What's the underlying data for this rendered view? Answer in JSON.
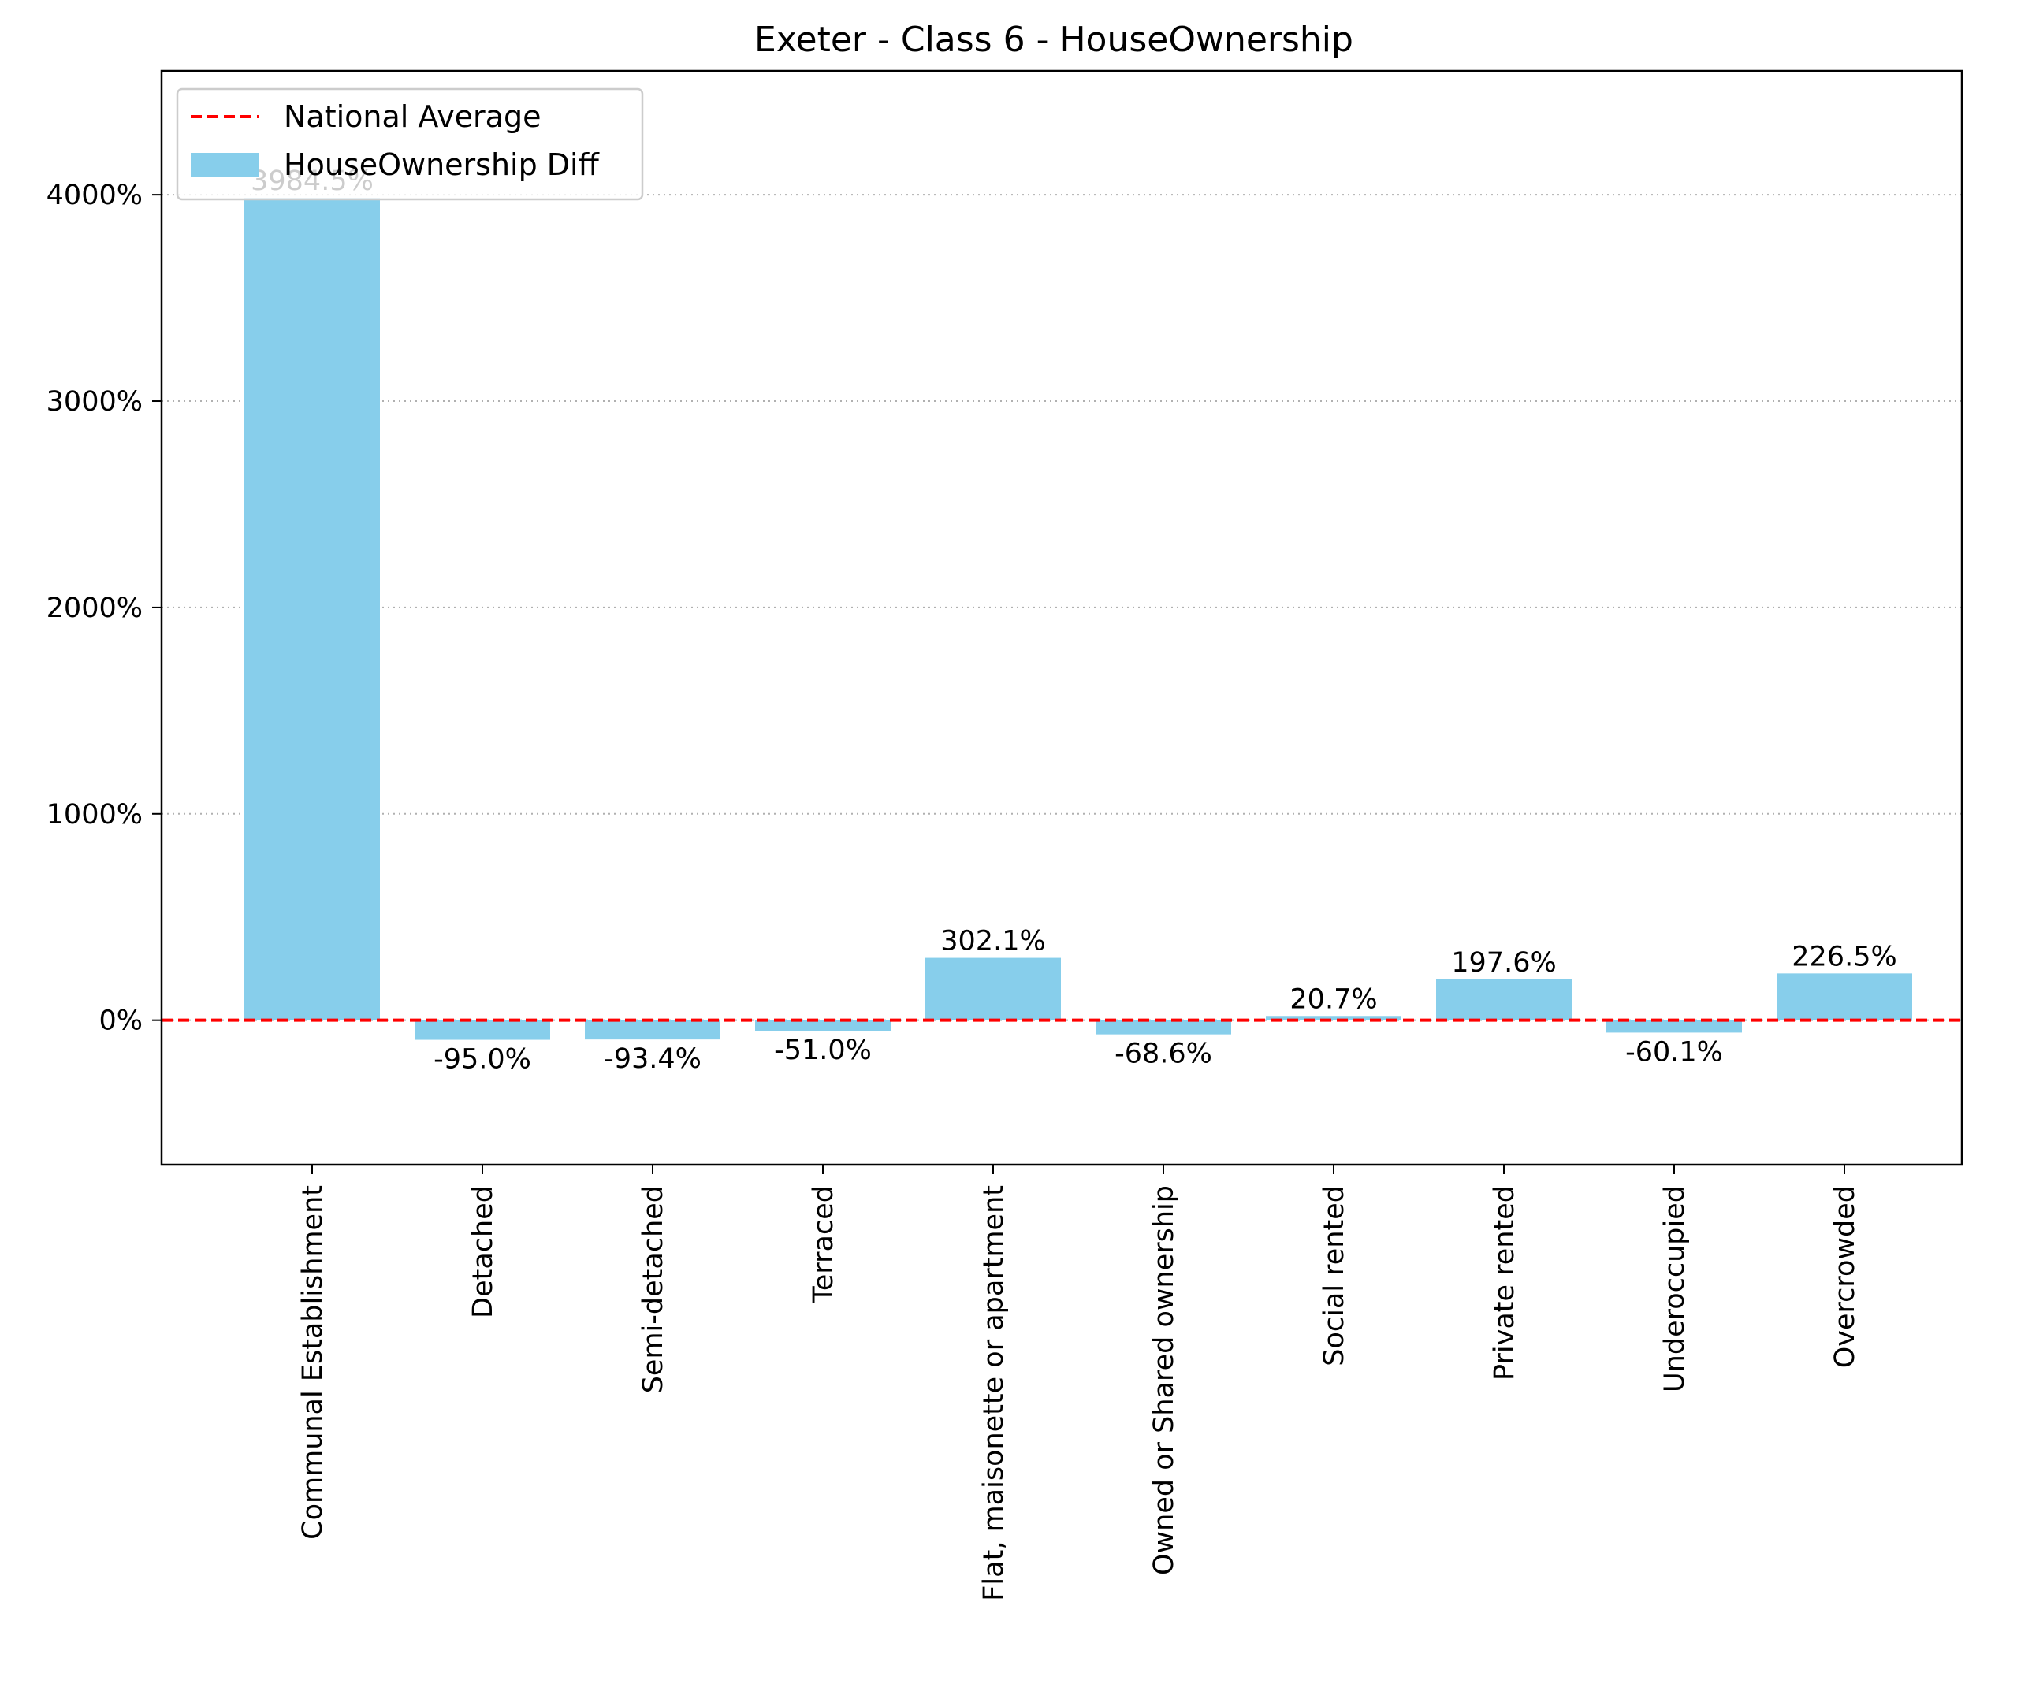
{
  "chart_data": {
    "type": "bar",
    "title": "Exeter - Class 6 - HouseOwnership",
    "xlabel": "",
    "ylabel": "",
    "categories": [
      "Communal Establishment",
      "Detached",
      "Semi-detached",
      "Terraced",
      "Flat, maisonette or apartment",
      "Owned or Shared ownership",
      "Social rented",
      "Private rented",
      "Underoccupied",
      "Overcrowded"
    ],
    "series": [
      {
        "name": "HouseOwnership Diff",
        "values": [
          3984.5,
          -95.0,
          -93.4,
          -51.0,
          302.1,
          -68.6,
          20.7,
          197.6,
          -60.1,
          226.5
        ],
        "color": "#87ceeb"
      }
    ],
    "data_labels": [
      "3984.5%",
      "-95.0%",
      "-93.4%",
      "-51.0%",
      "302.1%",
      "-68.6%",
      "20.7%",
      "197.6%",
      "-60.1%",
      "226.5%"
    ],
    "reference_line": {
      "name": "National Average",
      "value": 0,
      "color": "#ff0000",
      "style": "dashed"
    },
    "ylim": [
      -700,
      4600
    ],
    "yticks": [
      0,
      1000,
      2000,
      3000,
      4000
    ],
    "ytick_labels": [
      "0%",
      "1000%",
      "2000%",
      "3000%",
      "4000%"
    ],
    "grid": {
      "y": true,
      "style": "dotted",
      "color": "#b0b0b0"
    },
    "legend": {
      "position": "top-left",
      "entries": [
        "National Average",
        "HouseOwnership Diff"
      ]
    }
  }
}
